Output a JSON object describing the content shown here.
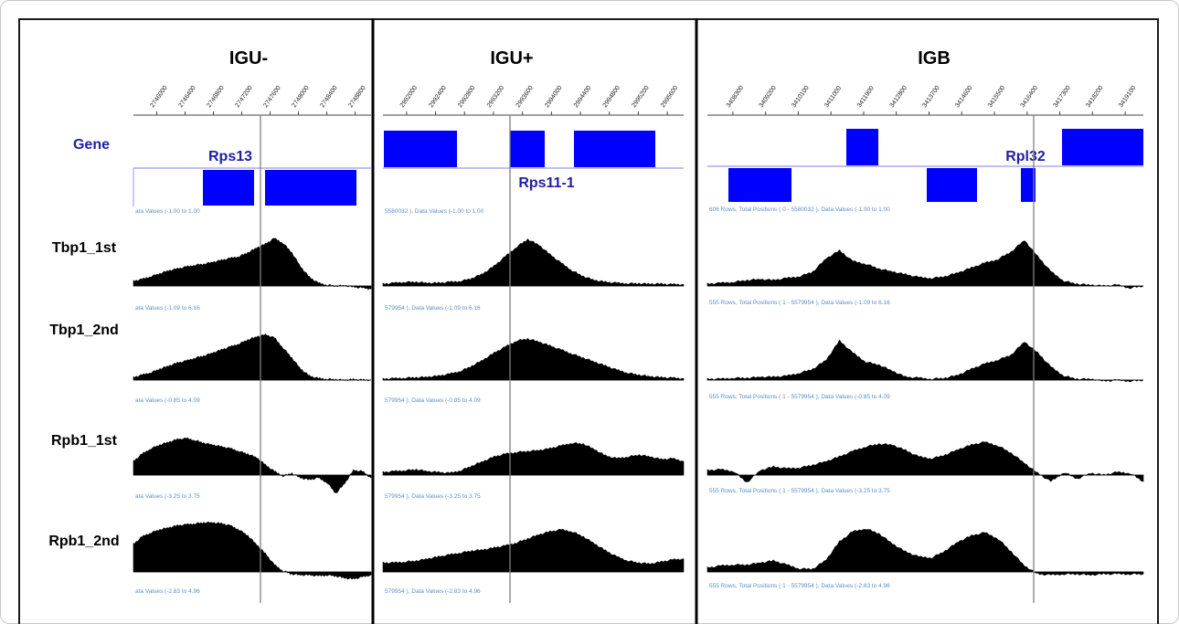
{
  "colors": {
    "gene_box": "#0000ff",
    "gene_text": "#1f1fa3",
    "signal": "#000000",
    "range_text": "#5b8fc7"
  },
  "row_labels": {
    "gene": "Gene",
    "tracks": [
      "Tbp1_1st",
      "Tbp1_2nd",
      "Rpb1_1st",
      "Rpb1_2nd"
    ]
  },
  "panels": [
    {
      "title": "IGU-",
      "ticks": [
        "2746000",
        "2746400",
        "2746800",
        "2747200",
        "2747600",
        "2748000",
        "2748400",
        "2748800"
      ],
      "gene_names": [
        "Rps13"
      ],
      "range_labels": [
        "ata Values (-1.00 to 1.00",
        "ata Values (-1.09 to 6.16",
        "ata Values (-0.85 to 4.09",
        "ata Values (-3.25 to 3.75",
        "ata Values (-2.83 to 4.96"
      ]
    },
    {
      "title": "IGU+",
      "ticks": [
        "2992000",
        "2992400",
        "2992800",
        "2993200",
        "2993600",
        "2994000",
        "2994400",
        "2994800",
        "2995200",
        "2995600"
      ],
      "gene_names": [
        "Rps11-1"
      ],
      "range_labels": [
        "5580032 ), Data Values (-1.00 to 1.00",
        "579954 ), Data Values (-1.09 to 6.16",
        "579954 ), Data Values (-0.85 to 4.09",
        "579954 ), Data Values (-3.25 to 3.75",
        "579954 ), Data Values (-2.83 to 4.96"
      ]
    },
    {
      "title": "IGB",
      "ticks": [
        "3408300",
        "3409200",
        "3410100",
        "3411000",
        "3411900",
        "3412800",
        "3413700",
        "3414600",
        "3415500",
        "3416400",
        "3417300",
        "3418200",
        "3419100"
      ],
      "gene_names": [
        "Rpl32"
      ],
      "range_labels": [
        "606 Rows, Total Positions ( 0 - 5580032 ), Data Values (-1.00 to 1.00",
        "555 Rows, Total Positions ( 1 - 5579954 ), Data Values (-1.09 to 6.16",
        "555 Rows, Total Positions ( 1 - 5579954 ), Data Values (-0.85 to 4.09",
        "555 Rows, Total Positions ( 1 - 5579954 ), Data Values (-3.25 to 3.75",
        "555 Rows, Total Positions ( 1 - 5579954 ), Data Values (-2.83 to 4.96"
      ]
    }
  ],
  "signals": [
    [
      [
        0.1,
        0.14,
        0.2,
        0.26,
        0.32,
        0.36,
        0.4,
        0.44,
        0.46,
        0.5,
        0.54,
        0.58,
        0.62,
        0.7,
        0.8,
        0.88,
        1.0,
        0.9,
        0.7,
        0.4,
        0.18,
        0.06,
        0.02,
        0.0,
        0.01,
        -0.02,
        -0.04,
        -0.06
      ],
      [
        0.05,
        0.1,
        0.15,
        0.22,
        0.28,
        0.34,
        0.38,
        0.44,
        0.48,
        0.54,
        0.6,
        0.66,
        0.72,
        0.8,
        0.86,
        0.9,
        0.84,
        0.64,
        0.44,
        0.22,
        0.08,
        0.03,
        0.02,
        0.01,
        0.0,
        0.01,
        0.0,
        0.0
      ],
      [
        0.3,
        0.46,
        0.58,
        0.66,
        0.72,
        0.78,
        0.8,
        0.76,
        0.7,
        0.66,
        0.62,
        0.58,
        0.52,
        0.46,
        0.38,
        0.22,
        0.08,
        -0.02,
        0.04,
        -0.06,
        -0.1,
        -0.06,
        -0.16,
        -0.4,
        -0.18,
        0.1,
        0.08,
        -0.06
      ],
      [
        0.55,
        0.7,
        0.78,
        0.84,
        0.88,
        0.92,
        0.94,
        0.96,
        0.98,
        0.98,
        0.96,
        0.92,
        0.84,
        0.72,
        0.54,
        0.36,
        0.14,
        0.02,
        -0.04,
        -0.06,
        -0.06,
        -0.08,
        -0.06,
        -0.08,
        -0.12,
        -0.14,
        -0.1,
        -0.06
      ]
    ],
    [
      [
        0.04,
        0.06,
        0.08,
        0.08,
        0.06,
        0.06,
        0.08,
        0.1,
        0.16,
        0.26,
        0.42,
        0.62,
        0.82,
        0.98,
        0.86,
        0.66,
        0.48,
        0.32,
        0.2,
        0.12,
        0.08,
        0.06,
        0.05,
        0.05,
        0.04,
        0.04,
        0.03,
        0.03
      ],
      [
        0.02,
        0.03,
        0.04,
        0.05,
        0.06,
        0.08,
        0.12,
        0.18,
        0.28,
        0.4,
        0.54,
        0.66,
        0.78,
        0.82,
        0.76,
        0.68,
        0.6,
        0.52,
        0.44,
        0.36,
        0.28,
        0.2,
        0.14,
        0.1,
        0.07,
        0.05,
        0.04,
        0.03
      ],
      [
        0.06,
        0.08,
        0.1,
        0.12,
        0.08,
        0.06,
        0.04,
        0.1,
        0.2,
        0.3,
        0.4,
        0.46,
        0.5,
        0.52,
        0.54,
        0.58,
        0.64,
        0.7,
        0.68,
        0.56,
        0.42,
        0.36,
        0.4,
        0.44,
        0.4,
        0.34,
        0.36,
        0.3
      ],
      [
        0.18,
        0.18,
        0.2,
        0.22,
        0.26,
        0.3,
        0.34,
        0.38,
        0.42,
        0.44,
        0.48,
        0.52,
        0.58,
        0.66,
        0.74,
        0.8,
        0.84,
        0.8,
        0.7,
        0.56,
        0.42,
        0.3,
        0.22,
        0.18,
        0.16,
        0.2,
        0.24,
        0.26
      ]
    ],
    [
      [
        0.04,
        0.06,
        0.08,
        0.12,
        0.14,
        0.12,
        0.16,
        0.2,
        0.3,
        0.58,
        0.74,
        0.52,
        0.46,
        0.36,
        0.3,
        0.24,
        0.18,
        0.16,
        0.2,
        0.28,
        0.38,
        0.48,
        0.56,
        0.72,
        0.96,
        0.62,
        0.3,
        0.1,
        0.04,
        0.02,
        0.0,
        0.02,
        -0.04,
        0.0
      ],
      [
        0.02,
        0.02,
        0.04,
        0.04,
        0.06,
        0.06,
        0.08,
        0.14,
        0.22,
        0.4,
        0.78,
        0.54,
        0.36,
        0.3,
        0.18,
        0.06,
        0.04,
        0.02,
        0.04,
        0.1,
        0.22,
        0.32,
        0.4,
        0.5,
        0.76,
        0.54,
        0.26,
        0.08,
        0.02,
        0.02,
        -0.02,
        0.0,
        -0.02,
        0.0
      ],
      [
        0.1,
        0.12,
        0.08,
        -0.16,
        0.1,
        0.18,
        0.14,
        0.16,
        0.22,
        0.3,
        0.4,
        0.52,
        0.62,
        0.68,
        0.66,
        0.54,
        0.4,
        0.36,
        0.44,
        0.56,
        0.66,
        0.72,
        0.64,
        0.48,
        0.26,
        0.04,
        -0.14,
        0.06,
        -0.08,
        0.04,
        0.0,
        0.06,
        0.04,
        -0.14
      ],
      [
        0.08,
        0.12,
        0.14,
        0.14,
        0.18,
        0.22,
        0.14,
        0.06,
        0.06,
        0.24,
        0.6,
        0.8,
        0.86,
        0.76,
        0.56,
        0.4,
        0.3,
        0.28,
        0.42,
        0.6,
        0.72,
        0.78,
        0.66,
        0.4,
        0.12,
        -0.04,
        -0.06,
        -0.04,
        -0.04,
        -0.06,
        -0.04,
        -0.04,
        -0.04,
        -0.04
      ]
    ]
  ]
}
